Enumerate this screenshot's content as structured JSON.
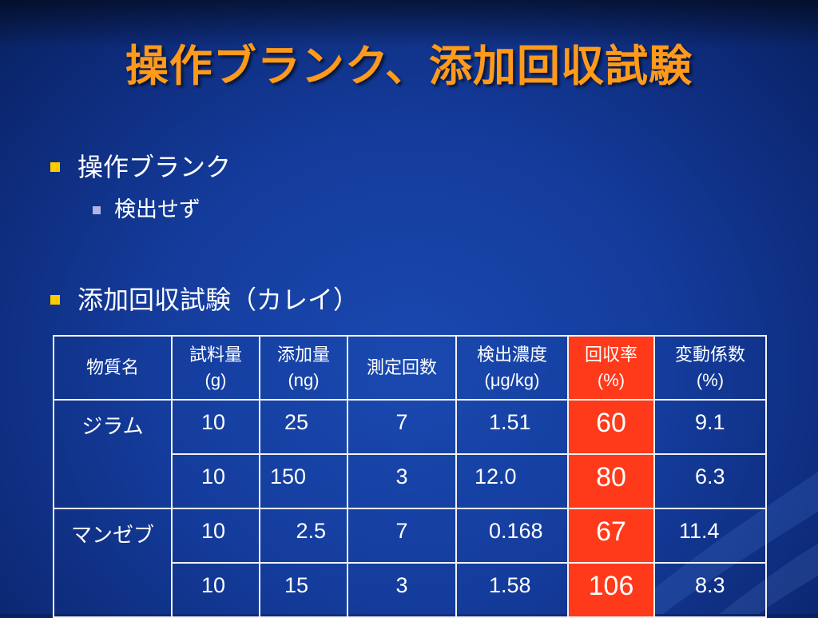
{
  "slide": {
    "title": "操作ブランク、添加回収試験"
  },
  "bullets": [
    {
      "level": 1,
      "text": "操作ブランク"
    },
    {
      "level": 2,
      "text": "検出せず"
    },
    {
      "level": 1,
      "text": "添加回収試験（カレイ）"
    }
  ],
  "table": {
    "headers": [
      {
        "line1": "物質名",
        "line2": ""
      },
      {
        "line1": "試料量",
        "line2": "(g)"
      },
      {
        "line1": "添加量",
        "line2": "(ng)"
      },
      {
        "line1": "測定回数",
        "line2": ""
      },
      {
        "line1": "検出濃度",
        "line2": "(μg/kg)"
      },
      {
        "line1": "回収率",
        "line2": "(%)"
      },
      {
        "line1": "変動係数",
        "line2": "(%)"
      }
    ],
    "groups": [
      {
        "substance": "ジラム",
        "rows": [
          {
            "sample": "10",
            "added": "25",
            "count": "7",
            "conc": "1.51",
            "recovery": "60",
            "cv": "9.1"
          },
          {
            "sample": "10",
            "added": "150",
            "count": "3",
            "conc": "12.0",
            "recovery": "80",
            "cv": "6.3"
          }
        ]
      },
      {
        "substance": "マンゼブ",
        "rows": [
          {
            "sample": "10",
            "added": "2.5",
            "count": "7",
            "conc": "0.168",
            "recovery": "67",
            "cv": "11.4"
          },
          {
            "sample": "10",
            "added": "15",
            "count": "3",
            "conc": "1.58",
            "recovery": "106",
            "cv": "8.3"
          }
        ]
      }
    ]
  },
  "colors": {
    "title": "#ff9a1a",
    "bullet_level1": "#ffcc00",
    "bullet_level2": "#b3b3e6",
    "recovery_highlight": "#ff3a1a",
    "background": "#143c9c"
  }
}
